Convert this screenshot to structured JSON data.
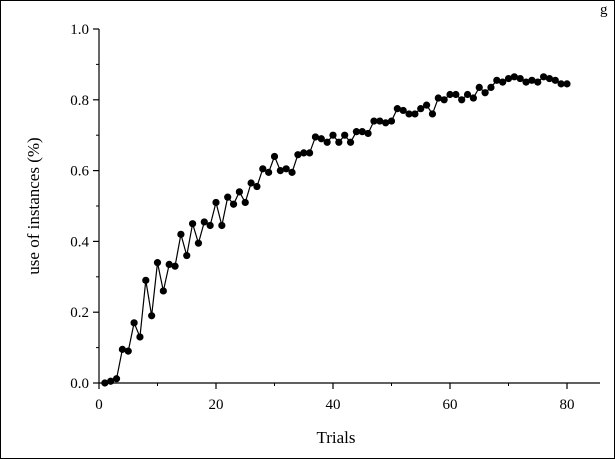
{
  "caption_fragment": "g",
  "chart_data": {
    "type": "line",
    "title": "",
    "xlabel": "Trials",
    "ylabel": "use of instances (%)",
    "xlim": [
      0,
      85
    ],
    "ylim": [
      0,
      1.0
    ],
    "x_ticks": [
      0,
      20,
      40,
      60,
      80
    ],
    "y_ticks": [
      0.0,
      0.2,
      0.4,
      0.6,
      0.8,
      1.0
    ],
    "x_tick_labels": [
      "0",
      "20",
      "40",
      "60",
      "80"
    ],
    "y_tick_labels": [
      "0.0",
      "0.2",
      "0.4",
      "0.6",
      "0.8",
      "1.0"
    ],
    "grid": false,
    "markers": true,
    "series": [
      {
        "x": [
          1,
          2,
          3,
          4,
          5,
          6,
          7,
          8,
          9,
          10,
          11,
          12,
          13,
          14,
          15,
          16,
          17,
          18,
          19,
          20,
          21,
          22,
          23,
          24,
          25,
          26,
          27,
          28,
          29,
          30,
          31,
          32,
          33,
          34,
          35,
          36,
          37,
          38,
          39,
          40,
          41,
          42,
          43,
          44,
          45,
          46,
          47,
          48,
          49,
          50,
          51,
          52,
          53,
          54,
          55,
          56,
          57,
          58,
          59,
          60,
          61,
          62,
          63,
          64,
          65,
          66,
          67,
          68,
          69,
          70,
          71,
          72,
          73,
          74,
          75,
          76,
          77,
          78,
          79,
          80
        ],
        "values": [
          0.0,
          0.005,
          0.012,
          0.095,
          0.09,
          0.17,
          0.13,
          0.29,
          0.19,
          0.34,
          0.26,
          0.335,
          0.33,
          0.42,
          0.36,
          0.45,
          0.395,
          0.455,
          0.445,
          0.51,
          0.445,
          0.525,
          0.505,
          0.54,
          0.51,
          0.565,
          0.555,
          0.605,
          0.595,
          0.64,
          0.6,
          0.605,
          0.595,
          0.645,
          0.65,
          0.65,
          0.695,
          0.69,
          0.68,
          0.7,
          0.68,
          0.7,
          0.68,
          0.71,
          0.71,
          0.705,
          0.74,
          0.74,
          0.735,
          0.74,
          0.775,
          0.77,
          0.76,
          0.76,
          0.775,
          0.785,
          0.76,
          0.805,
          0.8,
          0.815,
          0.815,
          0.8,
          0.815,
          0.805,
          0.835,
          0.82,
          0.835,
          0.855,
          0.85,
          0.86,
          0.865,
          0.86,
          0.85,
          0.855,
          0.85,
          0.865,
          0.86,
          0.855,
          0.845,
          0.845
        ]
      }
    ]
  }
}
